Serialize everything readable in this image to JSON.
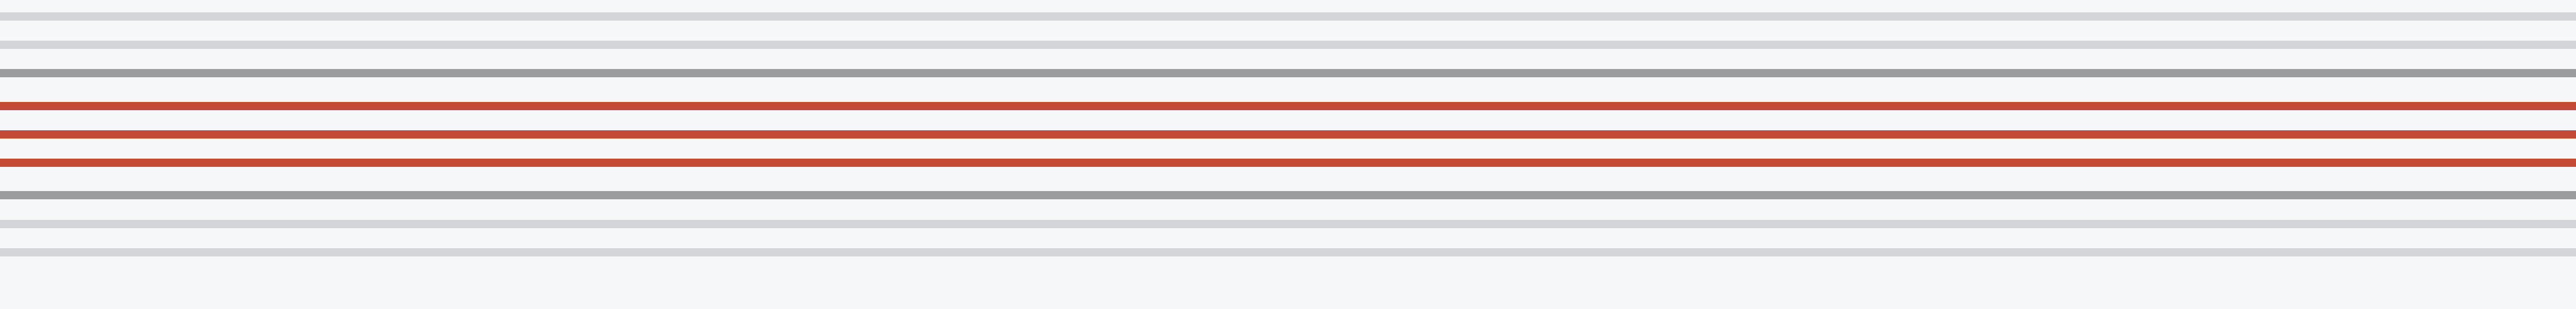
{
  "background_color": "#f5f7f9",
  "stripes": [
    {
      "tone": "light-gray",
      "color": "#d3d5d8"
    },
    {
      "tone": "light-gray",
      "color": "#d3d5d8"
    },
    {
      "tone": "dark-gray",
      "color": "#9a9c9e"
    },
    {
      "tone": "red",
      "color": "#c44a35"
    },
    {
      "tone": "red",
      "color": "#c44a35"
    },
    {
      "tone": "red",
      "color": "#c44a35"
    },
    {
      "tone": "dark-gray",
      "color": "#9a9c9e"
    },
    {
      "tone": "light-gray",
      "color": "#d3d5d8"
    },
    {
      "tone": "light-gray",
      "color": "#d3d5d8"
    }
  ]
}
